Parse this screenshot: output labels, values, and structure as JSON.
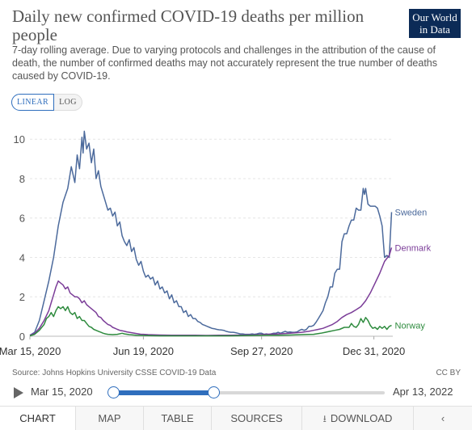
{
  "header": {
    "title": "Daily new confirmed COVID-19 deaths per million people",
    "logo_line1": "Our World",
    "logo_line2": "in Data",
    "subtitle": "7-day rolling average. Due to varying protocols and challenges in the attribution of the cause of death, the number of confirmed deaths may not accurately represent the true number of deaths caused by COVID-19."
  },
  "scale_toggle": {
    "linear": "LINEAR",
    "log": "LOG",
    "selected": "LINEAR"
  },
  "footer": {
    "source": "Source: Johns Hopkins University CSSE COVID-19 Data",
    "license": "CC BY"
  },
  "timeline": {
    "start": "Mar 15, 2020",
    "end": "Apr 13, 2022",
    "range_start_fraction": 0.0,
    "range_end_fraction": 0.37
  },
  "tabs": [
    {
      "label": "CHART",
      "active": true
    },
    {
      "label": "MAP",
      "active": false
    },
    {
      "label": "TABLE",
      "active": false
    },
    {
      "label": "SOURCES",
      "active": false
    },
    {
      "label": "DOWNLOAD",
      "active": false,
      "icon": "download-icon"
    },
    {
      "label": "",
      "active": false,
      "icon": "share-icon"
    }
  ],
  "chart_data": {
    "type": "line",
    "title": "Daily new confirmed COVID-19 deaths per million people",
    "ylim": [
      0,
      10.5
    ],
    "yticks": [
      0,
      2,
      4,
      6,
      8,
      10
    ],
    "xticks": [
      {
        "label": "Mar 15, 2020",
        "day": 0
      },
      {
        "label": "Jun 19, 2020",
        "day": 96
      },
      {
        "label": "Sep 27, 2020",
        "day": 196
      },
      {
        "label": "Dec 31, 2020",
        "day": 291
      }
    ],
    "xlim_days": [
      0,
      307
    ],
    "grid": true,
    "series": [
      {
        "name": "Sweden",
        "color": "#4c6a9c",
        "points": [
          [
            0,
            0.05
          ],
          [
            4,
            0.2
          ],
          [
            8,
            0.8
          ],
          [
            12,
            1.8
          ],
          [
            16,
            2.8
          ],
          [
            20,
            4.0
          ],
          [
            24,
            5.6
          ],
          [
            28,
            6.8
          ],
          [
            32,
            7.5
          ],
          [
            35,
            8.6
          ],
          [
            38,
            7.8
          ],
          [
            40,
            9.2
          ],
          [
            42,
            8.5
          ],
          [
            44,
            10.1
          ],
          [
            45,
            9.3
          ],
          [
            46,
            10.4
          ],
          [
            48,
            9.5
          ],
          [
            50,
            9.8
          ],
          [
            52,
            8.8
          ],
          [
            54,
            9.5
          ],
          [
            56,
            8.0
          ],
          [
            58,
            8.4
          ],
          [
            60,
            7.6
          ],
          [
            62,
            7.2
          ],
          [
            64,
            6.8
          ],
          [
            66,
            6.4
          ],
          [
            68,
            6.5
          ],
          [
            70,
            6.1
          ],
          [
            72,
            6.3
          ],
          [
            74,
            5.6
          ],
          [
            76,
            5.8
          ],
          [
            78,
            5.1
          ],
          [
            80,
            4.8
          ],
          [
            82,
            4.6
          ],
          [
            84,
            4.9
          ],
          [
            86,
            4.3
          ],
          [
            88,
            4.5
          ],
          [
            90,
            3.9
          ],
          [
            92,
            3.6
          ],
          [
            94,
            3.8
          ],
          [
            96,
            3.3
          ],
          [
            98,
            3.0
          ],
          [
            100,
            3.1
          ],
          [
            102,
            2.9
          ],
          [
            104,
            3.0
          ],
          [
            106,
            2.6
          ],
          [
            108,
            2.8
          ],
          [
            110,
            2.4
          ],
          [
            112,
            2.5
          ],
          [
            114,
            2.2
          ],
          [
            116,
            2.3
          ],
          [
            118,
            1.9
          ],
          [
            120,
            2.1
          ],
          [
            122,
            1.7
          ],
          [
            124,
            1.8
          ],
          [
            126,
            1.5
          ],
          [
            128,
            1.5
          ],
          [
            130,
            1.2
          ],
          [
            132,
            1.3
          ],
          [
            134,
            1.0
          ],
          [
            136,
            1.1
          ],
          [
            138,
            0.9
          ],
          [
            140,
            0.9
          ],
          [
            142,
            0.75
          ],
          [
            144,
            0.7
          ],
          [
            146,
            0.6
          ],
          [
            148,
            0.55
          ],
          [
            150,
            0.5
          ],
          [
            152,
            0.45
          ],
          [
            154,
            0.4
          ],
          [
            156,
            0.38
          ],
          [
            158,
            0.35
          ],
          [
            160,
            0.33
          ],
          [
            162,
            0.32
          ],
          [
            164,
            0.3
          ],
          [
            166,
            0.25
          ],
          [
            168,
            0.22
          ],
          [
            170,
            0.2
          ],
          [
            172,
            0.2
          ],
          [
            174,
            0.18
          ],
          [
            176,
            0.15
          ],
          [
            178,
            0.12
          ],
          [
            180,
            0.12
          ],
          [
            182,
            0.1
          ],
          [
            184,
            0.1
          ],
          [
            186,
            0.1
          ],
          [
            188,
            0.12
          ],
          [
            190,
            0.1
          ],
          [
            192,
            0.12
          ],
          [
            194,
            0.15
          ],
          [
            196,
            0.15
          ],
          [
            198,
            0.1
          ],
          [
            200,
            0.12
          ],
          [
            202,
            0.1
          ],
          [
            204,
            0.12
          ],
          [
            206,
            0.15
          ],
          [
            208,
            0.15
          ],
          [
            210,
            0.2
          ],
          [
            212,
            0.15
          ],
          [
            214,
            0.2
          ],
          [
            216,
            0.25
          ],
          [
            218,
            0.2
          ],
          [
            220,
            0.22
          ],
          [
            222,
            0.2
          ],
          [
            224,
            0.2
          ],
          [
            226,
            0.22
          ],
          [
            228,
            0.3
          ],
          [
            230,
            0.35
          ],
          [
            232,
            0.3
          ],
          [
            234,
            0.35
          ],
          [
            236,
            0.5
          ],
          [
            238,
            0.5
          ],
          [
            240,
            0.55
          ],
          [
            242,
            0.7
          ],
          [
            244,
            0.9
          ],
          [
            246,
            1.1
          ],
          [
            248,
            1.3
          ],
          [
            250,
            1.7
          ],
          [
            252,
            2.0
          ],
          [
            254,
            2.5
          ],
          [
            256,
            2.5
          ],
          [
            258,
            3.2
          ],
          [
            260,
            3.4
          ],
          [
            262,
            3.4
          ],
          [
            264,
            4.8
          ],
          [
            266,
            5.2
          ],
          [
            268,
            5.2
          ],
          [
            270,
            5.6
          ],
          [
            272,
            5.9
          ],
          [
            274,
            5.9
          ],
          [
            276,
            6.5
          ],
          [
            278,
            6.4
          ],
          [
            280,
            6.4
          ],
          [
            282,
            7.5
          ],
          [
            283,
            7.2
          ],
          [
            284,
            7.5
          ],
          [
            286,
            6.7
          ],
          [
            288,
            6.6
          ],
          [
            290,
            6.6
          ],
          [
            292,
            6.6
          ],
          [
            294,
            6.5
          ],
          [
            296,
            6.1
          ],
          [
            298,
            5.6
          ],
          [
            300,
            4.0
          ],
          [
            302,
            4.1
          ],
          [
            304,
            4.0
          ],
          [
            306,
            6.3
          ]
        ]
      },
      {
        "name": "Denmark",
        "color": "#7b3d98",
        "points": [
          [
            0,
            0.05
          ],
          [
            4,
            0.15
          ],
          [
            8,
            0.4
          ],
          [
            12,
            0.8
          ],
          [
            16,
            1.3
          ],
          [
            18,
            1.7
          ],
          [
            20,
            2.1
          ],
          [
            22,
            2.5
          ],
          [
            24,
            2.8
          ],
          [
            26,
            2.7
          ],
          [
            28,
            2.6
          ],
          [
            30,
            2.4
          ],
          [
            32,
            2.5
          ],
          [
            34,
            2.2
          ],
          [
            36,
            2.1
          ],
          [
            38,
            2.0
          ],
          [
            40,
            2.0
          ],
          [
            42,
            1.9
          ],
          [
            44,
            1.7
          ],
          [
            46,
            1.8
          ],
          [
            48,
            1.6
          ],
          [
            50,
            1.5
          ],
          [
            52,
            1.4
          ],
          [
            54,
            1.3
          ],
          [
            56,
            1.2
          ],
          [
            58,
            1.0
          ],
          [
            60,
            0.95
          ],
          [
            62,
            0.8
          ],
          [
            64,
            0.7
          ],
          [
            66,
            0.6
          ],
          [
            68,
            0.55
          ],
          [
            70,
            0.45
          ],
          [
            72,
            0.4
          ],
          [
            74,
            0.35
          ],
          [
            76,
            0.3
          ],
          [
            78,
            0.28
          ],
          [
            80,
            0.25
          ],
          [
            82,
            0.22
          ],
          [
            84,
            0.2
          ],
          [
            86,
            0.18
          ],
          [
            88,
            0.16
          ],
          [
            90,
            0.14
          ],
          [
            92,
            0.12
          ],
          [
            94,
            0.1
          ],
          [
            96,
            0.1
          ],
          [
            100,
            0.08
          ],
          [
            110,
            0.06
          ],
          [
            120,
            0.05
          ],
          [
            130,
            0.05
          ],
          [
            140,
            0.05
          ],
          [
            150,
            0.04
          ],
          [
            160,
            0.05
          ],
          [
            170,
            0.05
          ],
          [
            180,
            0.06
          ],
          [
            190,
            0.07
          ],
          [
            200,
            0.1
          ],
          [
            210,
            0.12
          ],
          [
            220,
            0.15
          ],
          [
            230,
            0.2
          ],
          [
            236,
            0.25
          ],
          [
            240,
            0.3
          ],
          [
            244,
            0.35
          ],
          [
            248,
            0.4
          ],
          [
            252,
            0.5
          ],
          [
            256,
            0.6
          ],
          [
            260,
            0.75
          ],
          [
            264,
            0.95
          ],
          [
            268,
            1.1
          ],
          [
            272,
            1.2
          ],
          [
            276,
            1.35
          ],
          [
            280,
            1.5
          ],
          [
            284,
            1.8
          ],
          [
            288,
            2.2
          ],
          [
            292,
            2.7
          ],
          [
            296,
            3.2
          ],
          [
            300,
            3.8
          ],
          [
            304,
            4.1
          ],
          [
            306,
            4.5
          ]
        ]
      },
      {
        "name": "Norway",
        "color": "#2e8b3e",
        "points": [
          [
            0,
            0.02
          ],
          [
            4,
            0.1
          ],
          [
            8,
            0.3
          ],
          [
            12,
            0.6
          ],
          [
            14,
            0.9
          ],
          [
            16,
            1.0
          ],
          [
            18,
            1.2
          ],
          [
            20,
            1.0
          ],
          [
            22,
            1.3
          ],
          [
            24,
            1.5
          ],
          [
            26,
            1.4
          ],
          [
            28,
            1.5
          ],
          [
            30,
            1.3
          ],
          [
            32,
            1.5
          ],
          [
            34,
            1.2
          ],
          [
            36,
            1.1
          ],
          [
            38,
            1.2
          ],
          [
            40,
            0.9
          ],
          [
            42,
            1.0
          ],
          [
            44,
            0.8
          ],
          [
            46,
            0.8
          ],
          [
            48,
            0.65
          ],
          [
            50,
            0.5
          ],
          [
            52,
            0.45
          ],
          [
            54,
            0.35
          ],
          [
            56,
            0.3
          ],
          [
            58,
            0.25
          ],
          [
            60,
            0.2
          ],
          [
            62,
            0.15
          ],
          [
            64,
            0.12
          ],
          [
            66,
            0.1
          ],
          [
            70,
            0.08
          ],
          [
            74,
            0.1
          ],
          [
            78,
            0.15
          ],
          [
            80,
            0.12
          ],
          [
            84,
            0.08
          ],
          [
            90,
            0.05
          ],
          [
            100,
            0.03
          ],
          [
            110,
            0.02
          ],
          [
            120,
            0.02
          ],
          [
            130,
            0.02
          ],
          [
            140,
            0.02
          ],
          [
            150,
            0.02
          ],
          [
            160,
            0.02
          ],
          [
            170,
            0.02
          ],
          [
            180,
            0.03
          ],
          [
            190,
            0.04
          ],
          [
            200,
            0.05
          ],
          [
            210,
            0.05
          ],
          [
            220,
            0.06
          ],
          [
            230,
            0.08
          ],
          [
            240,
            0.1
          ],
          [
            246,
            0.15
          ],
          [
            250,
            0.2
          ],
          [
            254,
            0.25
          ],
          [
            258,
            0.3
          ],
          [
            262,
            0.35
          ],
          [
            266,
            0.45
          ],
          [
            270,
            0.45
          ],
          [
            272,
            0.65
          ],
          [
            274,
            0.5
          ],
          [
            276,
            0.45
          ],
          [
            278,
            0.6
          ],
          [
            280,
            0.9
          ],
          [
            282,
            0.7
          ],
          [
            284,
            0.95
          ],
          [
            286,
            0.8
          ],
          [
            288,
            0.55
          ],
          [
            290,
            0.4
          ],
          [
            292,
            0.45
          ],
          [
            294,
            0.35
          ],
          [
            296,
            0.5
          ],
          [
            298,
            0.4
          ],
          [
            300,
            0.5
          ],
          [
            302,
            0.35
          ],
          [
            304,
            0.5
          ],
          [
            306,
            0.55
          ]
        ]
      }
    ]
  }
}
